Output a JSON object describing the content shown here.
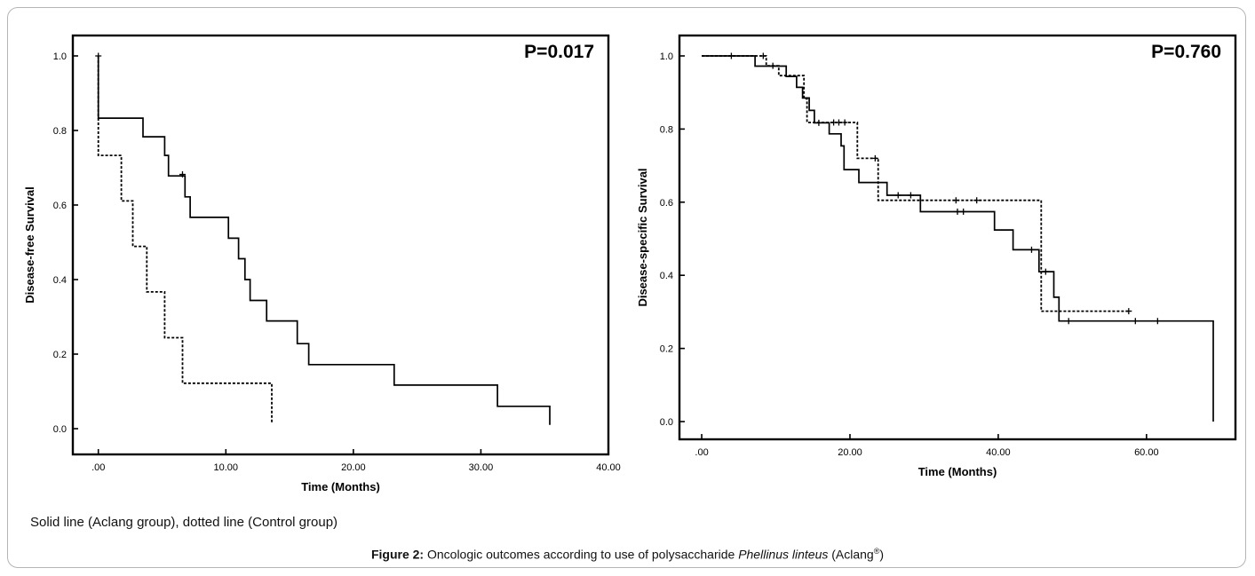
{
  "chart_data": [
    {
      "type": "line",
      "subtype": "kaplan-meier",
      "ylabel": "Disease-free Survival",
      "xlabel": "Time (Months)",
      "annotation": "P=0.017",
      "xlim": [
        -2,
        40
      ],
      "ylim": [
        0,
        1.0
      ],
      "xticks": [
        0,
        10,
        20,
        30,
        40
      ],
      "xtick_labels": [
        ".00",
        "10.00",
        "20.00",
        "30.00",
        "40.00"
      ],
      "yticks": [
        0,
        0.2,
        0.4,
        0.6,
        0.8,
        1.0
      ],
      "ytick_labels": [
        "0.0",
        "0.2",
        "0.4",
        "0.6",
        "0.8",
        "1.0"
      ],
      "series": [
        {
          "group": "Aclang group",
          "style": "solid",
          "steps": [
            [
              0,
              1.0
            ],
            [
              0,
              0.833
            ],
            [
              3.5,
              0.783
            ],
            [
              5.2,
              0.733
            ],
            [
              5.5,
              0.678
            ],
            [
              6.8,
              0.622
            ],
            [
              7.2,
              0.567
            ],
            [
              10.2,
              0.511
            ],
            [
              11,
              0.456
            ],
            [
              11.5,
              0.4
            ],
            [
              11.9,
              0.344
            ],
            [
              13.2,
              0.289
            ],
            [
              15.6,
              0.228
            ],
            [
              16.5,
              0.172
            ],
            [
              23.2,
              0.117
            ],
            [
              31.3,
              0.06
            ],
            [
              35.4,
              0.06
            ]
          ],
          "end": [
            35.4,
            0.01
          ],
          "censored": [
            [
              0,
              1.0
            ],
            [
              6.6,
              0.682
            ]
          ]
        },
        {
          "group": "Control group",
          "style": "dotted",
          "steps": [
            [
              0,
              1.0
            ],
            [
              0,
              0.733
            ],
            [
              1.8,
              0.611
            ],
            [
              2.7,
              0.489
            ],
            [
              3.8,
              0.367
            ],
            [
              5.2,
              0.244
            ],
            [
              6.6,
              0.122
            ],
            [
              13.6,
              0.122
            ]
          ],
          "end": [
            13.6,
            0.015
          ],
          "censored": []
        }
      ]
    },
    {
      "type": "line",
      "subtype": "kaplan-meier",
      "ylabel": "Disease-specific Survival",
      "xlabel": "Time (Months)",
      "annotation": "P=0.760",
      "xlim": [
        -3,
        72
      ],
      "ylim": [
        0,
        1.0
      ],
      "xticks": [
        0,
        20,
        40,
        60
      ],
      "xtick_labels": [
        ".00",
        "20.00",
        "40.00",
        "60.00"
      ],
      "yticks": [
        0,
        0.2,
        0.4,
        0.6,
        0.8,
        1.0
      ],
      "ytick_labels": [
        "0.0",
        "0.2",
        "0.4",
        "0.6",
        "0.8",
        "1.0"
      ],
      "series": [
        {
          "group": "Aclang group",
          "style": "solid",
          "steps": [
            [
              0,
              1.0
            ],
            [
              7.2,
              0.972
            ],
            [
              9.2,
              0.972
            ],
            [
              11.4,
              0.944
            ],
            [
              12.8,
              0.914
            ],
            [
              13.6,
              0.885
            ],
            [
              14.5,
              0.851
            ],
            [
              15.2,
              0.817
            ],
            [
              17.2,
              0.787
            ],
            [
              18.8,
              0.754
            ],
            [
              19.2,
              0.689
            ],
            [
              21.2,
              0.654
            ],
            [
              25,
              0.619
            ],
            [
              29.5,
              0.574
            ],
            [
              39.5,
              0.524
            ],
            [
              42,
              0.47
            ],
            [
              45.5,
              0.41
            ],
            [
              47.5,
              0.34
            ],
            [
              48.2,
              0.275
            ],
            [
              69,
              0.275
            ]
          ],
          "end": [
            69,
            0.0
          ],
          "censored": [
            [
              4,
              1.0
            ],
            [
              15.8,
              0.817
            ],
            [
              26.5,
              0.619
            ],
            [
              28.2,
              0.619
            ],
            [
              34.5,
              0.574
            ],
            [
              35.3,
              0.574
            ],
            [
              44.5,
              0.47
            ],
            [
              49.5,
              0.275
            ],
            [
              58.5,
              0.275
            ],
            [
              61.5,
              0.275
            ]
          ]
        },
        {
          "group": "Control group",
          "style": "dotted",
          "steps": [
            [
              0,
              1.0
            ],
            [
              8.2,
              1.0
            ],
            [
              8.7,
              0.973
            ],
            [
              10.4,
              0.946
            ],
            [
              13.8,
              0.883
            ],
            [
              14.2,
              0.818
            ],
            [
              21,
              0.72
            ],
            [
              23.8,
              0.605
            ],
            [
              45.8,
              0.302
            ],
            [
              57.5,
              0.302
            ]
          ],
          "end": null,
          "censored": [
            [
              8.3,
              1.0
            ],
            [
              9.6,
              0.973
            ],
            [
              17.8,
              0.818
            ],
            [
              18.5,
              0.818
            ],
            [
              19.3,
              0.818
            ],
            [
              23.4,
              0.72
            ],
            [
              34.3,
              0.605
            ],
            [
              37.1,
              0.605
            ],
            [
              46.4,
              0.41
            ],
            [
              57.6,
              0.302
            ]
          ]
        }
      ]
    }
  ],
  "note": "Solid line (Aclang group), dotted line (Control group)",
  "caption": {
    "label": "Figure 2:",
    "text_before": "Oncologic outcomes according to use of polysaccharide",
    "species": "Phellinus linteus",
    "text_after_open": "(Aclang",
    "reg": "®",
    "text_after_close": ")"
  }
}
